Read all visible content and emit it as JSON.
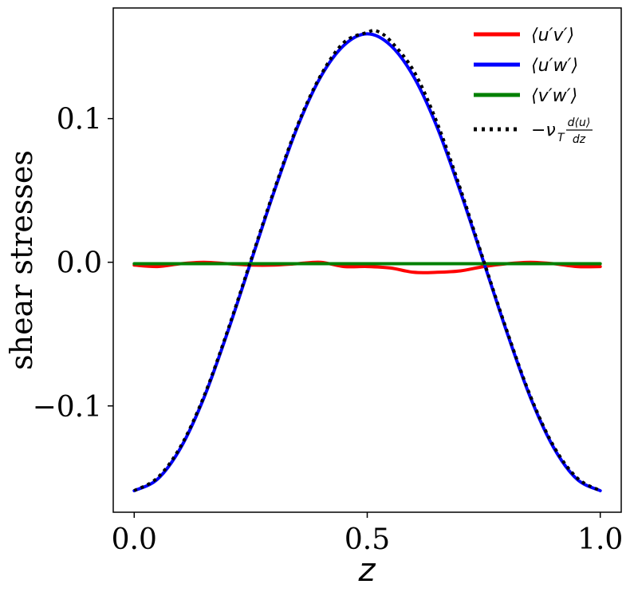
{
  "chart_data": {
    "type": "line",
    "title": "",
    "xlabel": "z",
    "ylabel": "shear stresses",
    "xlim": [
      -0.045,
      1.045
    ],
    "ylim": [
      -0.174,
      0.177
    ],
    "xticks": [
      0.0,
      0.5,
      1.0
    ],
    "xtick_labels": [
      "0.0",
      "0.5",
      "1.0"
    ],
    "yticks": [
      -0.1,
      0.0,
      0.1
    ],
    "ytick_labels": [
      "−0.1",
      "0.0",
      "0.1"
    ],
    "grid": false,
    "legend_position": "top-right",
    "series": [
      {
        "name": "⟨u′v′⟩",
        "color": "#ff0000",
        "style": "solid",
        "x": [
          0.0,
          0.05,
          0.1,
          0.15,
          0.2,
          0.25,
          0.3,
          0.35,
          0.4,
          0.45,
          0.5,
          0.55,
          0.6,
          0.65,
          0.7,
          0.75,
          0.8,
          0.85,
          0.9,
          0.95,
          1.0
        ],
        "y": [
          -0.002,
          -0.003,
          -0.001,
          0.0,
          -0.001,
          -0.002,
          -0.002,
          -0.001,
          0.0,
          -0.003,
          -0.003,
          -0.004,
          -0.007,
          -0.007,
          -0.006,
          -0.003,
          -0.001,
          0.0,
          -0.001,
          -0.003,
          -0.003
        ]
      },
      {
        "name": "⟨u′w′⟩",
        "color": "#0000ff",
        "style": "solid",
        "x": [
          0.0,
          0.05,
          0.1,
          0.15,
          0.2,
          0.25,
          0.3,
          0.35,
          0.4,
          0.45,
          0.5,
          0.55,
          0.6,
          0.65,
          0.7,
          0.75,
          0.8,
          0.85,
          0.9,
          0.95,
          1.0
        ],
        "y": [
          -0.159,
          -0.151,
          -0.129,
          -0.094,
          -0.049,
          0.0,
          0.049,
          0.094,
          0.129,
          0.151,
          0.159,
          0.151,
          0.129,
          0.094,
          0.049,
          0.0,
          -0.049,
          -0.094,
          -0.129,
          -0.151,
          -0.159
        ]
      },
      {
        "name": "⟨v′w′⟩",
        "color": "#008000",
        "style": "solid",
        "x": [
          0.0,
          0.25,
          0.5,
          0.75,
          1.0
        ],
        "y": [
          -0.001,
          -0.001,
          -0.001,
          -0.001,
          -0.001
        ]
      },
      {
        "name": "−ν_T d⟨u⟩/dz",
        "color": "#000000",
        "style": "dotted",
        "x": [
          0.0,
          0.05,
          0.1,
          0.15,
          0.2,
          0.25,
          0.3,
          0.35,
          0.4,
          0.45,
          0.5,
          0.52,
          0.55,
          0.6,
          0.65,
          0.7,
          0.75,
          0.8,
          0.85,
          0.9,
          0.95,
          1.0
        ],
        "y": [
          -0.159,
          -0.15,
          -0.128,
          -0.093,
          -0.048,
          0.001,
          0.05,
          0.095,
          0.13,
          0.153,
          0.16,
          0.161,
          0.154,
          0.133,
          0.097,
          0.051,
          0.001,
          -0.048,
          -0.093,
          -0.128,
          -0.15,
          -0.159
        ]
      }
    ],
    "legend": {
      "entries": [
        {
          "label": "⟨u′v′⟩"
        },
        {
          "label": "⟨u′w′⟩"
        },
        {
          "label": "⟨v′w′⟩"
        },
        {
          "label_main": "−ν",
          "label_sub": "T",
          "frac_num": "d⟨u⟩",
          "frac_den": "dz"
        }
      ]
    }
  }
}
